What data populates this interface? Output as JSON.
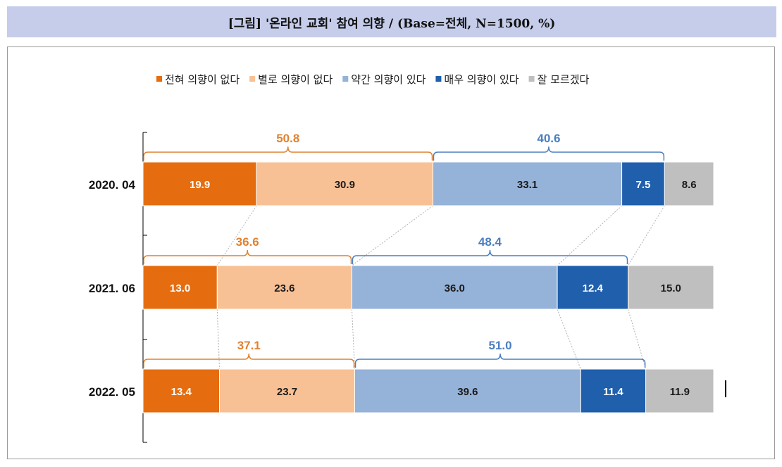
{
  "title": "[그림] '온라인 교회' 참여 의향 / (Base=전체, N=1500, %)",
  "colors": {
    "neg_bracket": "#e1812f",
    "pos_bracket": "#4a7ebf",
    "value_light": "#ffffff",
    "value_dark": "#1a1a1a"
  },
  "chart_data": {
    "type": "bar",
    "orientation": "horizontal",
    "stacked": true,
    "categories": [
      "2020. 04",
      "2021. 06",
      "2022. 05"
    ],
    "series": [
      {
        "name": "전혀 의향이 없다",
        "color": "#e56d10",
        "values": [
          19.9,
          13.0,
          13.4
        ]
      },
      {
        "name": "별로 의향이 없다",
        "color": "#f8c195",
        "values": [
          30.9,
          23.6,
          23.7
        ]
      },
      {
        "name": "약간 의향이 있다",
        "color": "#95b2d8",
        "values": [
          33.1,
          36.0,
          39.6
        ]
      },
      {
        "name": "매우 의향이 있다",
        "color": "#1f5fac",
        "values": [
          7.5,
          12.4,
          11.4
        ]
      },
      {
        "name": "잘 모르겠다",
        "color": "#bfbfbf",
        "values": [
          8.6,
          15.0,
          11.9
        ]
      }
    ],
    "group_totals": {
      "negative": [
        "50.8",
        "36.6",
        "37.1"
      ],
      "positive": [
        "40.6",
        "48.4",
        "51.0"
      ]
    },
    "legend_position": "top",
    "grid": false
  }
}
